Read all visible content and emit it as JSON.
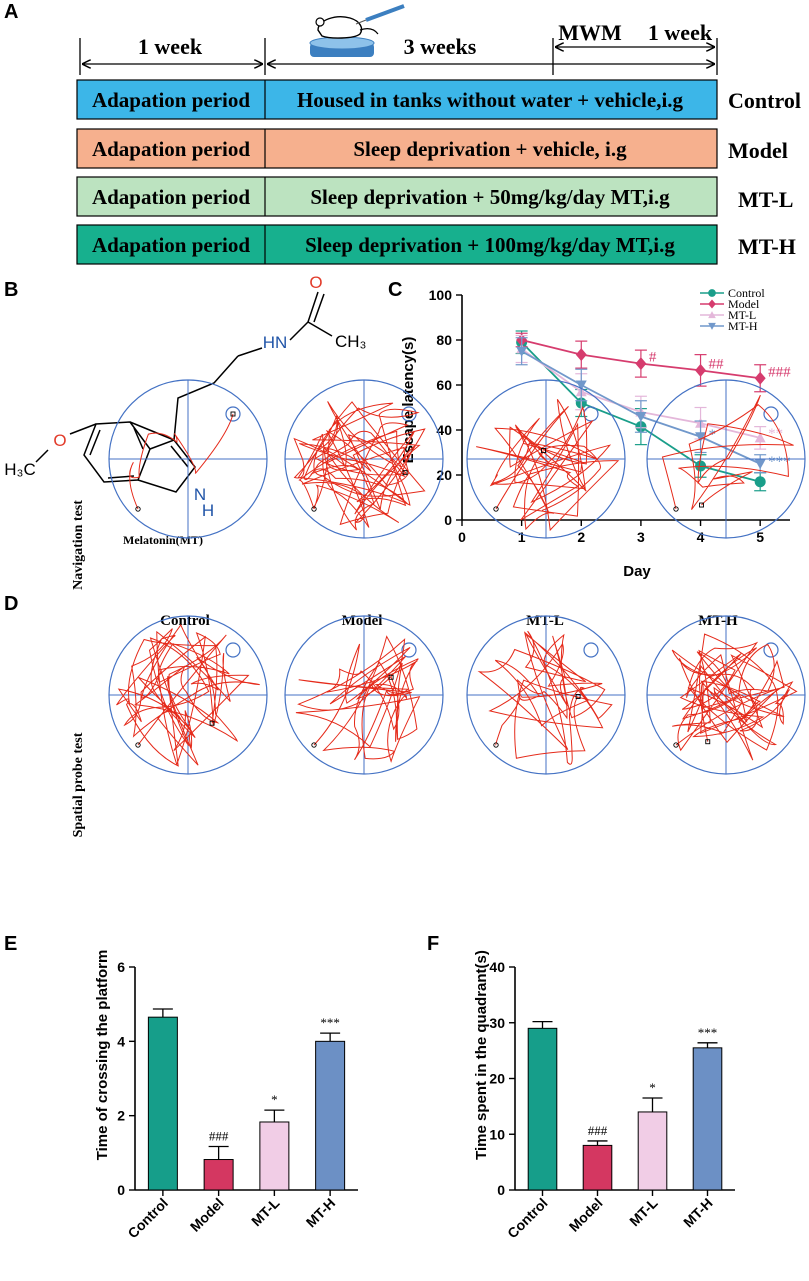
{
  "panels": {
    "a": "A",
    "b": "B",
    "c": "C",
    "d": "D",
    "e": "E",
    "f": "F"
  },
  "timeline": {
    "span_1week": "1 week",
    "span_3weeks": "3 weeks",
    "span_mwm": "MWM",
    "span_mwm_1week": "1 week",
    "rows": [
      {
        "phase": "Adapation period",
        "treatment": "Housed in tanks without water + vehicle,i.g",
        "group": "Control",
        "color": "#3CB6E8"
      },
      {
        "phase": "Adapation period",
        "treatment": "Sleep deprivation + vehicle, i.g",
        "group": "Model",
        "color": "#F6B08E"
      },
      {
        "phase": "Adapation period",
        "treatment": "Sleep deprivation + 50mg/kg/day MT,i.g",
        "group": "MT-L",
        "color": "#BCE3C0"
      },
      {
        "phase": "Adapation period",
        "treatment": "Sleep deprivation + 100mg/kg/day MT,i.g",
        "group": "MT-H",
        "color": "#17B08E"
      }
    ]
  },
  "molecule": {
    "name": "Melatonin(MT)",
    "atoms": {
      "o_carbonyl": "O",
      "nh_amide": "HN",
      "methyl": "CH₃",
      "o_methoxy": "O",
      "methoxy_group": "H₃C",
      "n_indole": "N",
      "h_indole": "H"
    }
  },
  "tracks": {
    "columns": [
      "Control",
      "Model",
      "MT-L",
      "MT-H"
    ],
    "rows": [
      "Navigation test",
      "Spatial probe  test"
    ]
  },
  "chart_data": [
    {
      "id": "C",
      "type": "line",
      "title": "",
      "xlabel": "Day",
      "ylabel": "Escape latency(s)",
      "x": [
        1,
        2,
        3,
        4,
        5
      ],
      "xlim": [
        0,
        5.5
      ],
      "ylim": [
        0,
        100
      ],
      "xticks": [
        0,
        1,
        2,
        3,
        4,
        5
      ],
      "yticks": [
        0,
        20,
        40,
        60,
        80,
        100
      ],
      "series": [
        {
          "name": "Control",
          "color": "#1A9E8A",
          "marker": "circle",
          "values": [
            79,
            52,
            41.5,
            24,
            17
          ],
          "errors": [
            5,
            6,
            8,
            5,
            4
          ]
        },
        {
          "name": "Model",
          "color": "#D63C6E",
          "marker": "diamond",
          "values": [
            80,
            73.5,
            69.5,
            66.5,
            63
          ],
          "errors": [
            3,
            6,
            6,
            7,
            6
          ]
        },
        {
          "name": "MT-L",
          "color": "#E4B7DA",
          "marker": "triangle-up",
          "values": [
            76,
            57,
            48,
            43,
            36.5
          ],
          "errors": [
            6,
            8,
            7,
            7,
            5
          ]
        },
        {
          "name": "MT-H",
          "color": "#7198CB",
          "marker": "triangle-down",
          "values": [
            75,
            60,
            46,
            37,
            25
          ],
          "errors": [
            6,
            7,
            7,
            7,
            4
          ]
        }
      ],
      "annotations": [
        {
          "text": "#",
          "series": "Model",
          "day": 3,
          "color": "#D63C6E"
        },
        {
          "text": "##",
          "series": "Model",
          "day": 4,
          "color": "#D63C6E"
        },
        {
          "text": "###",
          "series": "Model",
          "day": 5,
          "color": "#D63C6E"
        },
        {
          "text": "*",
          "series": "MT-H",
          "day": 4,
          "color": "#7198CB"
        },
        {
          "text": "**",
          "series": "MT-L",
          "day": 5,
          "color": "#E4B7DA"
        },
        {
          "text": "***",
          "series": "MT-H",
          "day": 5,
          "color": "#7198CB"
        }
      ]
    },
    {
      "id": "E",
      "type": "bar",
      "title": "",
      "xlabel": "",
      "ylabel": "Time of crossing the platform",
      "categories": [
        "Control",
        "Model",
        "MT-L",
        "MT-H"
      ],
      "values": [
        4.65,
        0.82,
        1.83,
        4.0
      ],
      "errors": [
        0.22,
        0.35,
        0.32,
        0.22
      ],
      "colors": [
        "#169E8A",
        "#D43761",
        "#F1CDE6",
        "#6C90C5"
      ],
      "annotations": [
        "",
        "###",
        "*",
        "***"
      ],
      "ylim": [
        0,
        6
      ],
      "yticks": [
        0,
        2,
        4,
        6
      ]
    },
    {
      "id": "F",
      "type": "bar",
      "title": "",
      "xlabel": "",
      "ylabel": "Time spent in the quadrant(s)",
      "categories": [
        "Control",
        "Model",
        "MT-L",
        "MT-H"
      ],
      "values": [
        29.0,
        8.0,
        14.0,
        25.5
      ],
      "errors": [
        1.2,
        0.8,
        2.5,
        0.9
      ],
      "colors": [
        "#169E8A",
        "#D43761",
        "#F1CDE6",
        "#6C90C5"
      ],
      "annotations": [
        "",
        "###",
        "*",
        "***"
      ],
      "ylim": [
        0,
        40
      ],
      "yticks": [
        0,
        10,
        20,
        30,
        40
      ]
    }
  ]
}
